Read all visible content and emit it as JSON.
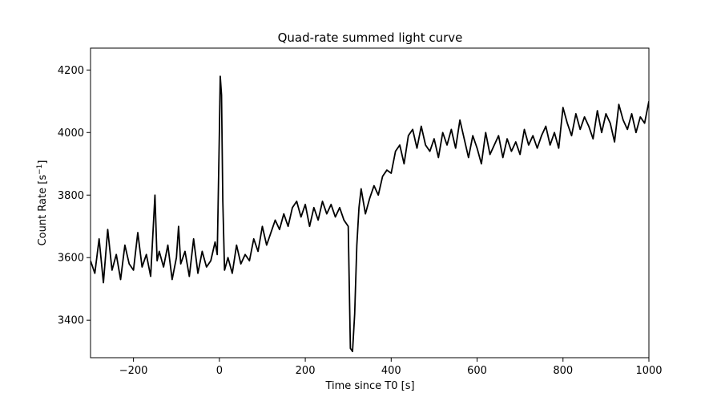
{
  "chart_data": {
    "type": "line",
    "title": "Quad-rate summed light curve",
    "xlabel": "Time since T0 [s]",
    "ylabel_base": "Count Rate [s",
    "ylabel_exp": "−1",
    "ylabel_close": "]",
    "xlim": [
      -300,
      1000
    ],
    "ylim": [
      3280,
      4270
    ],
    "xticks": [
      -200,
      0,
      200,
      400,
      600,
      800,
      1000
    ],
    "xtick_labels": [
      "−200",
      "0",
      "200",
      "400",
      "600",
      "800",
      "1000"
    ],
    "yticks": [
      3400,
      3600,
      3800,
      4000,
      4200
    ],
    "ytick_labels": [
      "3400",
      "3600",
      "3800",
      "4000",
      "4200"
    ],
    "grid": false,
    "series": [
      {
        "color": "#000000",
        "x": [
          -300,
          -290,
          -280,
          -270,
          -260,
          -250,
          -240,
          -230,
          -220,
          -210,
          -200,
          -190,
          -180,
          -170,
          -160,
          -150,
          -145,
          -140,
          -130,
          -120,
          -110,
          -100,
          -95,
          -90,
          -80,
          -70,
          -60,
          -50,
          -40,
          -30,
          -20,
          -10,
          -5,
          0,
          2,
          5,
          8,
          12,
          20,
          30,
          40,
          50,
          60,
          70,
          80,
          90,
          100,
          110,
          120,
          130,
          140,
          150,
          160,
          170,
          180,
          190,
          200,
          210,
          220,
          230,
          240,
          250,
          260,
          270,
          280,
          290,
          300,
          305,
          310,
          315,
          320,
          325,
          330,
          340,
          350,
          360,
          370,
          380,
          390,
          400,
          410,
          420,
          430,
          440,
          450,
          460,
          470,
          480,
          490,
          500,
          510,
          520,
          530,
          540,
          550,
          560,
          570,
          580,
          590,
          600,
          610,
          620,
          630,
          640,
          650,
          660,
          670,
          680,
          690,
          700,
          710,
          720,
          730,
          740,
          750,
          760,
          770,
          780,
          790,
          800,
          810,
          820,
          830,
          840,
          850,
          860,
          870,
          880,
          890,
          900,
          910,
          920,
          930,
          940,
          950,
          960,
          970,
          980,
          990,
          1000
        ],
        "y": [
          3590,
          3550,
          3660,
          3520,
          3690,
          3560,
          3610,
          3530,
          3640,
          3580,
          3560,
          3680,
          3570,
          3610,
          3540,
          3800,
          3590,
          3620,
          3570,
          3640,
          3530,
          3600,
          3700,
          3580,
          3620,
          3540,
          3660,
          3550,
          3620,
          3570,
          3590,
          3650,
          3610,
          4000,
          4180,
          4120,
          3780,
          3560,
          3600,
          3550,
          3640,
          3580,
          3610,
          3590,
          3660,
          3620,
          3700,
          3640,
          3680,
          3720,
          3690,
          3740,
          3700,
          3760,
          3780,
          3730,
          3770,
          3700,
          3760,
          3720,
          3780,
          3740,
          3770,
          3730,
          3760,
          3720,
          3700,
          3310,
          3300,
          3420,
          3640,
          3760,
          3820,
          3740,
          3790,
          3830,
          3800,
          3860,
          3880,
          3870,
          3940,
          3960,
          3900,
          3990,
          4010,
          3950,
          4020,
          3960,
          3940,
          3980,
          3920,
          4000,
          3960,
          4010,
          3950,
          4040,
          3980,
          3920,
          3990,
          3950,
          3900,
          4000,
          3930,
          3960,
          3990,
          3920,
          3980,
          3940,
          3970,
          3930,
          4010,
          3960,
          3990,
          3950,
          3990,
          4020,
          3960,
          4000,
          3950,
          4080,
          4030,
          3990,
          4060,
          4010,
          4050,
          4020,
          3980,
          4070,
          4000,
          4060,
          4030,
          3970,
          4090,
          4040,
          4010,
          4060,
          4000,
          4050,
          4030,
          4100
        ]
      }
    ]
  }
}
